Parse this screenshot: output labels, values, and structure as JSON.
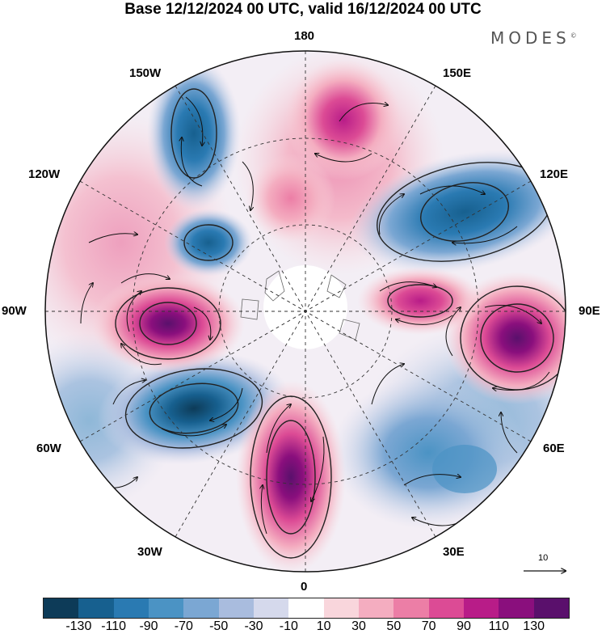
{
  "title": "Base 12/12/2024 00 UTC, valid 16/12/2024 00 UTC",
  "brand": "MODES",
  "brand_mark": "©",
  "longitude_labels": {
    "north": "180",
    "south": "0",
    "east": "90E",
    "west": "90W",
    "ne_upper": "150E",
    "ne_lower": "120E",
    "nw_upper": "150W",
    "nw_lower": "120W",
    "se_upper": "60E",
    "se_lower": "30E",
    "sw_upper": "60W",
    "sw_lower": "30W"
  },
  "vector_scale": "10",
  "colorbar": {
    "ticks": [
      "-130",
      "-110",
      "-90",
      "-70",
      "-50",
      "-30",
      "-10",
      "10",
      "30",
      "50",
      "70",
      "90",
      "110",
      "130"
    ],
    "colors": [
      "#0d3b58",
      "#17608f",
      "#2a7ab2",
      "#4b93c4",
      "#7ba7d3",
      "#a9bcde",
      "#d5d9ec",
      "#ffffff",
      "#f9d6dc",
      "#f4adc0",
      "#ec7ea6",
      "#dc4b95",
      "#b81c88",
      "#8a0f7d",
      "#5a106c"
    ]
  },
  "anomaly_centers": [
    {
      "sign": "negative",
      "value": -130,
      "lon_lat": "50W, 50N"
    },
    {
      "sign": "negative",
      "value": -110,
      "lon_lat": "120E, 55N"
    },
    {
      "sign": "negative",
      "value": -90,
      "lon_lat": "155W, 45N"
    },
    {
      "sign": "negative",
      "value": -70,
      "lon_lat": "130W, 65N"
    },
    {
      "sign": "negative",
      "value": -70,
      "lon_lat": "45E, 45N"
    },
    {
      "sign": "positive",
      "value": 130,
      "lon_lat": "95W, 50N"
    },
    {
      "sign": "positive",
      "value": 130,
      "lon_lat": "95E, 45N"
    },
    {
      "sign": "positive",
      "value": 110,
      "lon_lat": "90E, 65N"
    },
    {
      "sign": "positive",
      "value": 110,
      "lon_lat": "5W, 45N"
    },
    {
      "sign": "positive",
      "value": 70,
      "lon_lat": "170E, 55N"
    }
  ]
}
